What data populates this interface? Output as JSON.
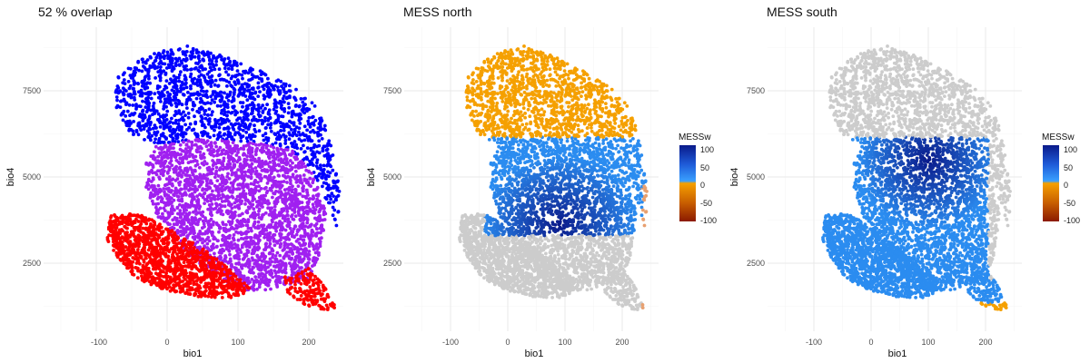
{
  "chart_data": [
    {
      "type": "scatter",
      "title": "52 % overlap",
      "xlabel": "bio1",
      "ylabel": "bio4",
      "xlim": [
        -160,
        250
      ],
      "ylim": [
        900,
        9000
      ],
      "x_ticks": [
        "-100",
        "0",
        "100",
        "200"
      ],
      "y_ticks": [
        "2500",
        "5000",
        "7500"
      ],
      "grid": true,
      "legend": "none",
      "series": [
        {
          "color": "#0000ff",
          "region": "north-only",
          "outline": [
            [
              -70,
              7900
            ],
            [
              -40,
              8400
            ],
            [
              -10,
              8650
            ],
            [
              30,
              8800
            ],
            [
              80,
              8500
            ],
            [
              130,
              8100
            ],
            [
              175,
              7700
            ],
            [
              205,
              7200
            ],
            [
              225,
              6400
            ],
            [
              235,
              5600
            ],
            [
              245,
              4500
            ],
            [
              240,
              3500
            ],
            [
              205,
              5200
            ],
            [
              175,
              5800
            ],
            [
              120,
              6000
            ],
            [
              40,
              6100
            ],
            [
              -15,
              5900
            ],
            [
              -55,
              6300
            ],
            [
              -75,
              7100
            ]
          ]
        },
        {
          "color": "#a020f0",
          "region": "overlap",
          "outline": [
            [
              -15,
              5900
            ],
            [
              40,
              6100
            ],
            [
              120,
              6000
            ],
            [
              175,
              5800
            ],
            [
              205,
              5100
            ],
            [
              225,
              4000
            ],
            [
              215,
              2700
            ],
            [
              200,
              2000
            ],
            [
              140,
              1700
            ],
            [
              90,
              1750
            ],
            [
              65,
              2200
            ],
            [
              30,
              2750
            ],
            [
              5,
              3350
            ],
            [
              -15,
              3900
            ],
            [
              -30,
              4700
            ],
            [
              -30,
              5400
            ]
          ]
        },
        {
          "color": "#ff0000",
          "region": "south-only",
          "outline": [
            [
              -80,
              3900
            ],
            [
              -40,
              3950
            ],
            [
              -10,
              3650
            ],
            [
              20,
              3300
            ],
            [
              60,
              2800
            ],
            [
              95,
              2200
            ],
            [
              120,
              1700
            ],
            [
              90,
              1500
            ],
            [
              50,
              1500
            ],
            [
              0,
              1700
            ],
            [
              -40,
              2000
            ],
            [
              -70,
              2600
            ],
            [
              -85,
              3200
            ]
          ]
        },
        {
          "color": "#ff0000",
          "region": "south-only-tail",
          "outline": [
            [
              165,
              2100
            ],
            [
              200,
              2350
            ],
            [
              220,
              1900
            ],
            [
              240,
              1200
            ],
            [
              220,
              1100
            ],
            [
              195,
              1250
            ],
            [
              170,
              1600
            ]
          ]
        }
      ]
    },
    {
      "type": "scatter",
      "title": "MESS north",
      "xlabel": "bio1",
      "ylabel": "bio4",
      "xlim": [
        -160,
        250
      ],
      "ylim": [
        900,
        9000
      ],
      "x_ticks": [
        "-100",
        "0",
        "100",
        "200"
      ],
      "y_ticks": [
        "2500",
        "5000",
        "7500"
      ],
      "grid": true,
      "legend": "right",
      "legend_title": "MESSw",
      "legend_ticks": [
        "100",
        "50",
        "0",
        "-50",
        "-100"
      ],
      "series": [
        {
          "color": "#cccccc",
          "region": "other-points"
        },
        {
          "color": "#f39c00",
          "region": "MESS<0"
        },
        {
          "color": "#1e3fb0",
          "region": "MESS>0"
        }
      ]
    },
    {
      "type": "scatter",
      "title": "MESS south",
      "xlabel": "bio1",
      "ylabel": "bio4",
      "xlim": [
        -160,
        250
      ],
      "ylim": [
        900,
        9000
      ],
      "x_ticks": [
        "-100",
        "0",
        "100",
        "200"
      ],
      "y_ticks": [
        "2500",
        "5000",
        "7500"
      ],
      "grid": true,
      "legend": "right",
      "legend_title": "MESSw",
      "legend_ticks": [
        "100",
        "50",
        "0",
        "-50",
        "-100"
      ],
      "series": [
        {
          "color": "#cccccc",
          "region": "other-points"
        },
        {
          "color": "#1e3fb0",
          "region": "MESS>0"
        },
        {
          "color": "#f39c00",
          "region": "MESS<0"
        }
      ]
    }
  ],
  "colors": {
    "north": "#0000ff",
    "overlap": "#a020f0",
    "south": "#ff0000",
    "other": "#cccccc",
    "mess_high": "#0a1a8a",
    "mess_mid": "#2b8cf0",
    "mess_zero": "#f5a000",
    "mess_low": "#8b1a00"
  }
}
